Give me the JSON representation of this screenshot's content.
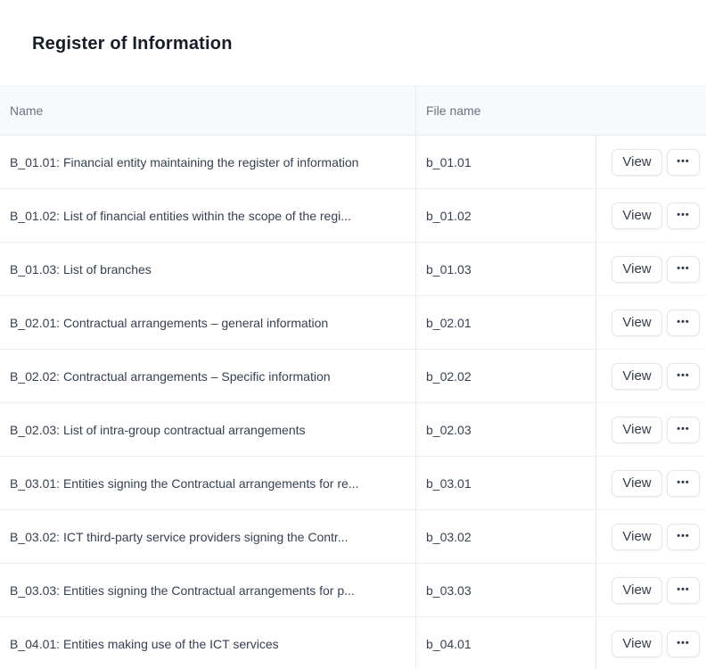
{
  "page": {
    "title": "Register of Information"
  },
  "theme": {
    "header-bg": "#f8f9fa",
    "border": "#e9ebef",
    "title-color": "#171c26",
    "muted": "#6b7280",
    "text": "#374151",
    "btn-text": "#333c4a"
  },
  "table": {
    "columns": {
      "name": "Name",
      "file_name": "File name"
    },
    "actions": {
      "view_label": "View",
      "more_glyph": "•••",
      "more_icon": "more-options-icon"
    },
    "rows": [
      {
        "name": "B_01.01: Financial entity maintaining the register of information",
        "file_name": "b_01.01"
      },
      {
        "name": "B_01.02: List of financial entities within the scope of the regi...",
        "file_name": "b_01.02"
      },
      {
        "name": "B_01.03: List of branches",
        "file_name": "b_01.03"
      },
      {
        "name": "B_02.01: Contractual arrangements – general information",
        "file_name": "b_02.01"
      },
      {
        "name": "B_02.02: Contractual arrangements – Specific information",
        "file_name": "b_02.02"
      },
      {
        "name": "B_02.03: List of intra-group contractual arrangements",
        "file_name": "b_02.03"
      },
      {
        "name": "B_03.01: Entities signing the Contractual arrangements for re...",
        "file_name": "b_03.01"
      },
      {
        "name": "B_03.02: ICT third-party service providers signing the Contr...",
        "file_name": "b_03.02"
      },
      {
        "name": "B_03.03: Entities signing the Contractual arrangements for p...",
        "file_name": "b_03.03"
      },
      {
        "name": "B_04.01: Entities making use of the ICT services",
        "file_name": "b_04.01"
      }
    ]
  }
}
